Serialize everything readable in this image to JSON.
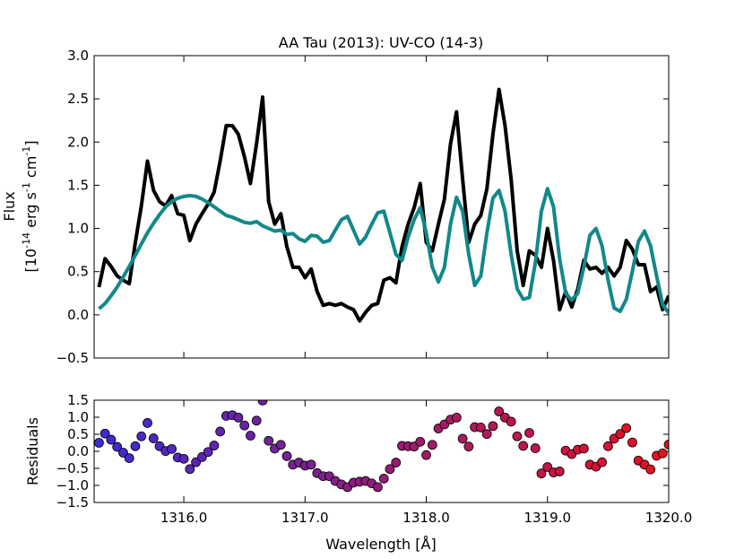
{
  "chart_data": [
    {
      "type": "line",
      "title": "AA Tau (2013): UV-CO (14-3)",
      "ylabel": "Flux",
      "ylabel_units": [
        "[10",
        "-14",
        " erg s",
        "-1",
        " cm",
        "-1",
        "]"
      ],
      "xlim": [
        1315.26,
        1320.0
      ],
      "ylim": [
        -0.5,
        3.0
      ],
      "xticks": [
        1316,
        1317,
        1318,
        1319,
        1320
      ],
      "yticks": [
        {
          "value": -0.5,
          "label": "−0.5"
        },
        {
          "value": 0,
          "label": "0.0"
        },
        {
          "value": 0.5,
          "label": "0.5"
        },
        {
          "value": 1,
          "label": "1.0"
        },
        {
          "value": 1.5,
          "label": "1.5"
        },
        {
          "value": 2,
          "label": "2.0"
        },
        {
          "value": 2.5,
          "label": "2.5"
        },
        {
          "value": 3,
          "label": "3.0"
        }
      ],
      "x": [
        1315.3,
        1315.35,
        1315.4,
        1315.45,
        1315.5,
        1315.55,
        1315.6,
        1315.65,
        1315.7,
        1315.75,
        1315.8,
        1315.85,
        1315.9,
        1315.95,
        1316.0,
        1316.05,
        1316.1,
        1316.15,
        1316.2,
        1316.25,
        1316.3,
        1316.35,
        1316.4,
        1316.45,
        1316.5,
        1316.55,
        1316.6,
        1316.65,
        1316.7,
        1316.75,
        1316.8,
        1316.85,
        1316.9,
        1316.95,
        1317.0,
        1317.05,
        1317.1,
        1317.15,
        1317.2,
        1317.25,
        1317.3,
        1317.35,
        1317.4,
        1317.45,
        1317.5,
        1317.55,
        1317.6,
        1317.65,
        1317.7,
        1317.75,
        1317.8,
        1317.85,
        1317.9,
        1317.95,
        1318.0,
        1318.05,
        1318.1,
        1318.15,
        1318.2,
        1318.25,
        1318.3,
        1318.35,
        1318.4,
        1318.45,
        1318.5,
        1318.55,
        1318.6,
        1318.65,
        1318.7,
        1318.75,
        1318.8,
        1318.85,
        1318.9,
        1318.95,
        1319.0,
        1319.05,
        1319.1,
        1319.15,
        1319.2,
        1319.25,
        1319.3,
        1319.35,
        1319.4,
        1319.45,
        1319.5,
        1319.55,
        1319.6,
        1319.65,
        1319.7,
        1319.75,
        1319.8,
        1319.85,
        1319.9,
        1319.95,
        1320.0
      ],
      "series": [
        {
          "color": "#000000",
          "values": [
            0.32,
            0.65,
            0.56,
            0.45,
            0.4,
            0.36,
            0.84,
            1.26,
            1.78,
            1.44,
            1.31,
            1.26,
            1.38,
            1.17,
            1.15,
            0.86,
            1.05,
            1.17,
            1.28,
            1.42,
            1.78,
            2.19,
            2.19,
            2.09,
            1.83,
            1.52,
            1.98,
            2.52,
            1.31,
            1.05,
            1.17,
            0.79,
            0.55,
            0.55,
            0.43,
            0.53,
            0.27,
            0.11,
            0.13,
            0.11,
            0.13,
            0.09,
            0.06,
            -0.07,
            0.03,
            0.11,
            0.13,
            0.4,
            0.43,
            0.37,
            0.79,
            1.05,
            1.24,
            1.52,
            0.84,
            0.74,
            1.05,
            1.34,
            1.98,
            2.35,
            1.57,
            0.84,
            1.05,
            1.15,
            1.46,
            2.09,
            2.61,
            2.19,
            1.57,
            0.74,
            0.34,
            0.74,
            0.69,
            0.55,
            1.0,
            0.63,
            0.06,
            0.27,
            0.09,
            0.3,
            0.63,
            0.53,
            0.55,
            0.48,
            0.55,
            0.45,
            0.55,
            0.86,
            0.76,
            0.58,
            0.58,
            0.27,
            0.32,
            0.06,
            0.22
          ]
        },
        {
          "color": "#12888a",
          "values": [
            0.07,
            0.13,
            0.22,
            0.32,
            0.44,
            0.56,
            0.69,
            0.82,
            0.95,
            1.06,
            1.16,
            1.25,
            1.31,
            1.35,
            1.37,
            1.38,
            1.37,
            1.34,
            1.3,
            1.25,
            1.2,
            1.15,
            1.13,
            1.1,
            1.07,
            1.06,
            1.08,
            1.03,
            1.0,
            0.97,
            0.98,
            0.93,
            0.94,
            0.88,
            0.85,
            0.92,
            0.91,
            0.84,
            0.86,
            0.98,
            1.1,
            1.14,
            0.98,
            0.82,
            0.9,
            1.05,
            1.18,
            1.2,
            0.95,
            0.7,
            0.63,
            0.9,
            1.1,
            1.24,
            0.95,
            0.55,
            0.38,
            0.55,
            1.05,
            1.36,
            1.2,
            0.7,
            0.34,
            0.45,
            0.95,
            1.35,
            1.44,
            1.2,
            0.7,
            0.3,
            0.18,
            0.2,
            0.6,
            1.2,
            1.46,
            1.25,
            0.65,
            0.25,
            0.17,
            0.25,
            0.55,
            0.92,
            1.0,
            0.8,
            0.4,
            0.08,
            0.04,
            0.18,
            0.5,
            0.85,
            0.97,
            0.8,
            0.45,
            0.12,
            0.02
          ]
        }
      ]
    },
    {
      "type": "scatter",
      "ylabel": "Residuals",
      "xlabel": "Wavelength [Å]",
      "xlim": [
        1315.26,
        1320.0
      ],
      "ylim": [
        -1.5,
        1.5
      ],
      "xticks": [
        {
          "value": 1316,
          "label": "1316.0"
        },
        {
          "value": 1317,
          "label": "1317.0"
        },
        {
          "value": 1318,
          "label": "1318.0"
        },
        {
          "value": 1319,
          "label": "1319.0"
        },
        {
          "value": 1320,
          "label": "1320.0"
        }
      ],
      "yticks": [
        {
          "value": -1.5,
          "label": "−1.5"
        },
        {
          "value": -1,
          "label": "−1.0"
        },
        {
          "value": -0.5,
          "label": "−0.5"
        },
        {
          "value": 0,
          "label": "0.0"
        },
        {
          "value": 0.5,
          "label": "0.5"
        },
        {
          "value": 1,
          "label": "1.0"
        },
        {
          "value": 1.5,
          "label": "1.5"
        }
      ],
      "cmap": [
        "#3c2ad6",
        "#e8101c"
      ],
      "x": [
        1315.3,
        1315.35,
        1315.4,
        1315.45,
        1315.5,
        1315.55,
        1315.6,
        1315.65,
        1315.7,
        1315.75,
        1315.8,
        1315.85,
        1315.9,
        1315.95,
        1316.0,
        1316.05,
        1316.1,
        1316.15,
        1316.2,
        1316.25,
        1316.3,
        1316.35,
        1316.4,
        1316.45,
        1316.5,
        1316.55,
        1316.6,
        1316.65,
        1316.7,
        1316.75,
        1316.8,
        1316.85,
        1316.9,
        1316.95,
        1317.0,
        1317.05,
        1317.1,
        1317.15,
        1317.2,
        1317.25,
        1317.3,
        1317.35,
        1317.4,
        1317.45,
        1317.5,
        1317.55,
        1317.6,
        1317.65,
        1317.7,
        1317.75,
        1317.8,
        1317.85,
        1317.9,
        1317.95,
        1318.0,
        1318.05,
        1318.1,
        1318.15,
        1318.2,
        1318.25,
        1318.3,
        1318.35,
        1318.4,
        1318.45,
        1318.5,
        1318.55,
        1318.6,
        1318.65,
        1318.7,
        1318.75,
        1318.8,
        1318.85,
        1318.9,
        1318.95,
        1319.0,
        1319.05,
        1319.1,
        1319.15,
        1319.2,
        1319.25,
        1319.3,
        1319.35,
        1319.4,
        1319.45,
        1319.5,
        1319.55,
        1319.6,
        1319.65,
        1319.7,
        1319.75,
        1319.8,
        1319.85,
        1319.9,
        1319.95,
        1320.0
      ],
      "values": [
        0.25,
        0.52,
        0.34,
        0.13,
        -0.04,
        -0.2,
        0.15,
        0.44,
        0.83,
        0.38,
        0.15,
        0.01,
        0.07,
        -0.18,
        -0.22,
        -0.52,
        -0.32,
        -0.17,
        -0.02,
        0.17,
        0.58,
        1.04,
        1.06,
        0.99,
        0.76,
        0.46,
        0.9,
        1.49,
        0.31,
        0.08,
        0.19,
        -0.14,
        -0.39,
        -0.33,
        -0.42,
        -0.39,
        -0.64,
        -0.73,
        -0.73,
        -0.87,
        -0.97,
        -1.05,
        -0.92,
        -0.89,
        -0.87,
        -0.94,
        -1.05,
        -0.8,
        -0.52,
        -0.33,
        0.16,
        0.15,
        0.14,
        0.28,
        -0.11,
        0.19,
        0.67,
        0.79,
        0.93,
        0.99,
        0.37,
        0.14,
        0.71,
        0.7,
        0.51,
        0.74,
        1.17,
        0.99,
        0.87,
        0.44,
        0.16,
        0.54,
        0.09,
        -0.65,
        -0.46,
        -0.62,
        -0.59,
        0.02,
        -0.08,
        0.05,
        0.08,
        -0.39,
        -0.45,
        -0.32,
        0.15,
        0.37,
        0.51,
        0.68,
        0.26,
        -0.27,
        -0.39,
        -0.53,
        -0.13,
        -0.06,
        0.2
      ]
    }
  ]
}
